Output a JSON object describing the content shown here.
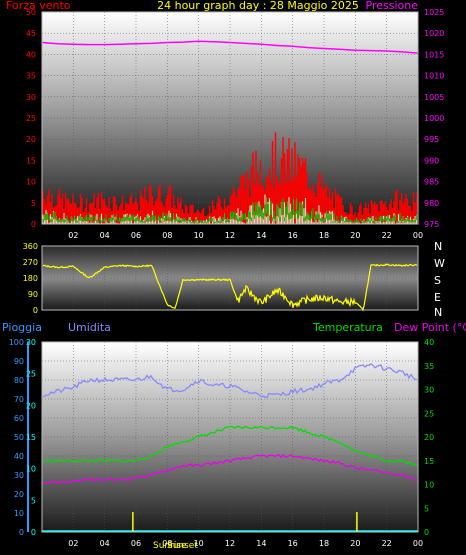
{
  "header": {
    "wind_label": "Forza vento",
    "title": "24 hour graph day : 28 Maggio 2025",
    "pressure_label": "Pressione"
  },
  "panel3_labels": {
    "rain": "Pioggia",
    "humidity": "Umidita",
    "temperature": "Temperatura",
    "dew_point": "Dew Point (°C)"
  },
  "sun_labels": {
    "sunrise": "Sunrise",
    "sunset": "Sunset"
  },
  "compass": [
    "N",
    "W",
    "S",
    "E",
    "N"
  ],
  "colors": {
    "wind": "#ff0000",
    "gust_light": "#ccffcc",
    "gust_green": "#00cc00",
    "pressure": "#ff00ff",
    "direction": "#ffff00",
    "humidity": "#8888ff",
    "temperature": "#00dd00",
    "dew_point": "#ee00ee",
    "rain": "#00ffff",
    "rain_axis": "#3399ff",
    "sun": "#ffff00"
  },
  "chart_data": [
    {
      "type": "area",
      "name": "wind_pressure",
      "x_ticks": [
        "02",
        "04",
        "06",
        "08",
        "10",
        "12",
        "14",
        "16",
        "18",
        "20",
        "22",
        "00"
      ],
      "y_left_ticks": [
        "0",
        "5",
        "10",
        "15",
        "20",
        "25",
        "30",
        "35",
        "40",
        "45",
        "50"
      ],
      "y_left_range": [
        0,
        50
      ],
      "y_right_ticks": [
        "975",
        "980",
        "985",
        "990",
        "995",
        "1000",
        "1005",
        "1010",
        "1015",
        "1020",
        "1025"
      ],
      "y_right_range": [
        975,
        1025
      ],
      "grid": true,
      "series": [
        {
          "name": "Forza vento",
          "x": [
            0,
            1,
            2,
            3,
            4,
            5,
            6,
            7,
            8,
            9,
            10,
            11,
            12,
            13,
            14,
            15,
            16,
            17,
            18,
            19,
            20,
            21,
            22,
            23,
            24
          ],
          "values": [
            8,
            6,
            5,
            5,
            6,
            5,
            5,
            7,
            7,
            4,
            3,
            4,
            7,
            10,
            14,
            15,
            14,
            12,
            8,
            5,
            3,
            4,
            5,
            6,
            5
          ]
        },
        {
          "name": "Pressione",
          "x": [
            0,
            1,
            2,
            3,
            4,
            5,
            6,
            7,
            8,
            9,
            10,
            11,
            12,
            13,
            14,
            15,
            16,
            17,
            18,
            19,
            20,
            21,
            22,
            23,
            24
          ],
          "values": [
            1017.8,
            1017.5,
            1017.4,
            1017.3,
            1017.3,
            1017.4,
            1017.5,
            1017.6,
            1017.8,
            1017.9,
            1018.1,
            1018.0,
            1017.8,
            1017.6,
            1017.4,
            1017.1,
            1016.9,
            1016.6,
            1016.4,
            1016.2,
            1016.0,
            1015.9,
            1015.8,
            1015.6,
            1015.3
          ]
        }
      ]
    },
    {
      "type": "line",
      "name": "wind_direction",
      "x_ticks": [],
      "y_ticks": [
        "0",
        "90",
        "180",
        "270",
        "360"
      ],
      "y_range": [
        0,
        360
      ],
      "grid": true,
      "series": [
        {
          "x": [
            0,
            1,
            2,
            3,
            4,
            5,
            6,
            7,
            8,
            8.5,
            9,
            10,
            11,
            12,
            12.5,
            13,
            14,
            15,
            15.5,
            16,
            17,
            18,
            19,
            20,
            20.5,
            21,
            22,
            23,
            24
          ],
          "values": [
            250,
            240,
            245,
            180,
            240,
            250,
            245,
            250,
            30,
            10,
            170,
            170,
            170,
            170,
            50,
            120,
            40,
            110,
            80,
            30,
            60,
            70,
            45,
            45,
            0,
            250,
            255,
            250,
            255
          ]
        }
      ]
    },
    {
      "type": "line",
      "name": "humidity_temperature_dewpoint",
      "x_ticks": [
        "02",
        "04",
        "06",
        "08",
        "10",
        "12",
        "14",
        "16",
        "18",
        "20",
        "22",
        "00"
      ],
      "y_rain_ticks": [
        "0",
        "10",
        "20",
        "30",
        "40",
        "50",
        "60",
        "70",
        "80",
        "90",
        "100"
      ],
      "y_rain_range": [
        0,
        100
      ],
      "y_left_ticks": [
        "0",
        "5",
        "10",
        "15",
        "20",
        "25",
        "30"
      ],
      "y_left_range": [
        0,
        30
      ],
      "y_right_ticks": [
        "0",
        "5",
        "10",
        "15",
        "20",
        "25",
        "30",
        "35",
        "40"
      ],
      "y_right_range": [
        0,
        40
      ],
      "grid": true,
      "series": [
        {
          "name": "Umidita",
          "x": [
            0,
            1,
            2,
            3,
            4,
            5,
            6,
            7,
            8,
            9,
            10,
            11,
            12,
            13,
            14,
            15,
            16,
            17,
            18,
            19,
            20,
            21,
            22,
            23,
            24
          ],
          "values": [
            72,
            74,
            76,
            80,
            80,
            80,
            80,
            82,
            75,
            75,
            80,
            77,
            77,
            74,
            72,
            72,
            74,
            75,
            78,
            80,
            86,
            88,
            86,
            84,
            80
          ]
        },
        {
          "name": "Temperatura",
          "x": [
            0,
            1,
            2,
            3,
            4,
            5,
            6,
            7,
            8,
            9,
            10,
            11,
            12,
            13,
            14,
            15,
            16,
            17,
            18,
            19,
            20,
            21,
            22,
            23,
            24
          ],
          "values": [
            15,
            15,
            15,
            15,
            15,
            15,
            15,
            16,
            18,
            19,
            20,
            21,
            22,
            22,
            22,
            22,
            22,
            21,
            20,
            19,
            17,
            16,
            15,
            15,
            14
          ]
        },
        {
          "name": "Dew Point (°C)",
          "x": [
            0,
            1,
            2,
            3,
            4,
            5,
            6,
            7,
            8,
            9,
            10,
            11,
            12,
            13,
            14,
            15,
            16,
            17,
            18,
            19,
            20,
            21,
            22,
            23,
            24
          ],
          "values": [
            10.5,
            10.5,
            10.7,
            11,
            11,
            11,
            11.5,
            12,
            13,
            14,
            14,
            14.5,
            15,
            15.5,
            16,
            16,
            16,
            15.5,
            15,
            14.5,
            13.5,
            13,
            12.5,
            12,
            11
          ]
        },
        {
          "name": "Pioggia",
          "x": [
            0,
            24
          ],
          "values": [
            0,
            0
          ]
        }
      ],
      "sunrise_hour": 5.8,
      "sunset_hour": 20.1
    }
  ]
}
